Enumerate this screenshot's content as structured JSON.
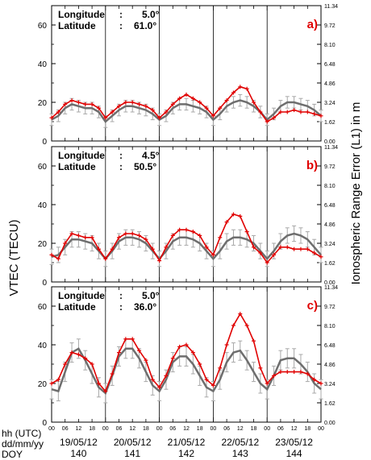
{
  "chart_data": {
    "type": "line",
    "y_left_label": "VTEC (TECU)",
    "y_right_label": "Ionospheric Range Error (L1) in m",
    "y_left_ticks": [
      "0",
      "20",
      "40",
      "60"
    ],
    "y_right_ticks": [
      "0.00",
      "1.62",
      "3.24",
      "4.86",
      "6.48",
      "8.10",
      "9.72",
      "11.34"
    ],
    "x_hour_ticks": [
      "00",
      "06",
      "12",
      "18",
      "00",
      "06",
      "12",
      "18",
      "00",
      "06",
      "12",
      "18",
      "00",
      "06",
      "12",
      "18",
      "00",
      "06",
      "12",
      "18",
      "00"
    ],
    "row_labels": [
      "hh (UTC)",
      "dd/mm/yy",
      "DOY"
    ],
    "dates": [
      "19/05/12",
      "20/05/12",
      "21/05/12",
      "22/05/12",
      "23/05/12"
    ],
    "doys": [
      "140",
      "141",
      "142",
      "143",
      "144"
    ],
    "colors": {
      "observed": "#e00000",
      "model": "#6e6e6e",
      "errorbar": "#a8a8a8"
    },
    "x_unit": "hours since 19/05/12 00 UTC",
    "panels": [
      {
        "letter": "a)",
        "lon_label": "Longitude",
        "lon_value": "5.0",
        "lat_label": "Latitude",
        "lat_value": "61.0",
        "ylim": [
          0,
          70
        ],
        "observed_x": [
          0,
          3,
          6,
          9,
          12,
          15,
          18,
          21,
          24,
          27,
          30,
          33,
          36,
          39,
          42,
          45,
          48,
          51,
          54,
          57,
          60,
          63,
          66,
          69,
          72,
          75,
          78,
          81,
          84,
          87,
          90,
          93,
          96,
          99,
          102,
          105,
          108,
          111,
          114,
          117,
          120
        ],
        "observed": [
          12,
          15,
          19,
          21,
          20,
          19,
          19,
          17,
          12,
          15,
          18,
          20,
          20,
          19,
          18,
          16,
          12,
          15,
          19,
          22,
          24,
          22,
          20,
          17,
          13,
          17,
          21,
          25,
          28,
          27,
          20,
          15,
          10,
          12,
          15,
          15,
          16,
          15,
          15,
          14,
          13
        ],
        "model_x": [
          0,
          3,
          6,
          9,
          12,
          15,
          18,
          21,
          24,
          27,
          30,
          33,
          36,
          39,
          42,
          45,
          48,
          51,
          54,
          57,
          60,
          63,
          66,
          69,
          72,
          75,
          78,
          81,
          84,
          87,
          90,
          93,
          96,
          99,
          102,
          105,
          108,
          111,
          114,
          117,
          120
        ],
        "model": [
          11,
          13,
          17,
          19,
          18,
          17,
          17,
          15,
          10,
          13,
          16,
          18,
          18,
          17,
          16,
          14,
          11,
          13,
          17,
          19,
          19,
          18,
          17,
          15,
          11,
          14,
          18,
          20,
          21,
          20,
          18,
          15,
          11,
          14,
          18,
          20,
          20,
          19,
          18,
          16,
          13
        ],
        "model_err": 3
      },
      {
        "letter": "b)",
        "lon_label": "Longitude",
        "lon_value": "4.5",
        "lat_label": "Latitude",
        "lat_value": "50.5",
        "ylim": [
          0,
          70
        ],
        "observed_x": [
          0,
          3,
          6,
          9,
          12,
          15,
          18,
          21,
          24,
          27,
          30,
          33,
          36,
          39,
          42,
          45,
          48,
          51,
          54,
          57,
          60,
          63,
          66,
          69,
          72,
          75,
          78,
          81,
          84,
          87,
          90,
          93,
          96,
          99,
          102,
          105,
          108,
          111,
          114,
          117,
          120
        ],
        "observed": [
          14,
          12,
          20,
          25,
          24,
          23,
          23,
          17,
          12,
          17,
          23,
          25,
          25,
          24,
          22,
          17,
          11,
          18,
          24,
          27,
          27,
          26,
          24,
          18,
          14,
          23,
          31,
          35,
          34,
          26,
          18,
          15,
          10,
          14,
          18,
          18,
          17,
          17,
          17,
          15,
          13
        ],
        "model_x": [
          0,
          3,
          6,
          9,
          12,
          15,
          18,
          21,
          24,
          27,
          30,
          33,
          36,
          39,
          42,
          45,
          48,
          51,
          54,
          57,
          60,
          63,
          66,
          69,
          72,
          75,
          78,
          81,
          84,
          87,
          90,
          93,
          96,
          99,
          102,
          105,
          108,
          111,
          114,
          117,
          120
        ],
        "model": [
          13,
          14,
          18,
          22,
          22,
          21,
          20,
          16,
          12,
          16,
          21,
          23,
          23,
          22,
          20,
          16,
          12,
          16,
          21,
          23,
          23,
          22,
          20,
          16,
          12,
          16,
          21,
          23,
          23,
          22,
          20,
          16,
          12,
          16,
          21,
          24,
          25,
          24,
          22,
          18,
          14
        ],
        "model_err": 4
      },
      {
        "letter": "c)",
        "lon_label": "Longitude",
        "lon_value": "5.0",
        "lat_label": "Latitude",
        "lat_value": "36.0",
        "ylim": [
          0,
          70
        ],
        "observed_x": [
          0,
          3,
          6,
          9,
          12,
          15,
          18,
          21,
          24,
          27,
          30,
          33,
          36,
          39,
          42,
          45,
          48,
          51,
          54,
          57,
          60,
          63,
          66,
          69,
          72,
          75,
          78,
          81,
          84,
          87,
          90,
          93,
          96,
          99,
          102,
          105,
          108,
          111,
          114,
          117,
          120
        ],
        "observed": [
          20,
          22,
          30,
          36,
          35,
          33,
          30,
          20,
          16,
          25,
          36,
          43,
          43,
          37,
          32,
          22,
          18,
          24,
          33,
          39,
          40,
          36,
          30,
          22,
          19,
          28,
          40,
          50,
          56,
          50,
          42,
          28,
          20,
          24,
          26,
          26,
          26,
          26,
          25,
          22,
          20
        ],
        "model_x": [
          0,
          3,
          6,
          9,
          12,
          15,
          18,
          21,
          24,
          27,
          30,
          33,
          36,
          39,
          42,
          45,
          48,
          51,
          54,
          57,
          60,
          63,
          66,
          69,
          72,
          75,
          78,
          81,
          84,
          87,
          90,
          93,
          96,
          99,
          102,
          105,
          108,
          111,
          114,
          117,
          120
        ],
        "model": [
          17,
          16,
          26,
          36,
          38,
          32,
          25,
          18,
          15,
          24,
          34,
          38,
          38,
          33,
          26,
          19,
          16,
          22,
          31,
          34,
          34,
          30,
          24,
          18,
          16,
          22,
          31,
          36,
          37,
          32,
          26,
          20,
          17,
          24,
          32,
          33,
          33,
          30,
          26,
          20,
          17
        ],
        "model_err": 5
      }
    ]
  }
}
